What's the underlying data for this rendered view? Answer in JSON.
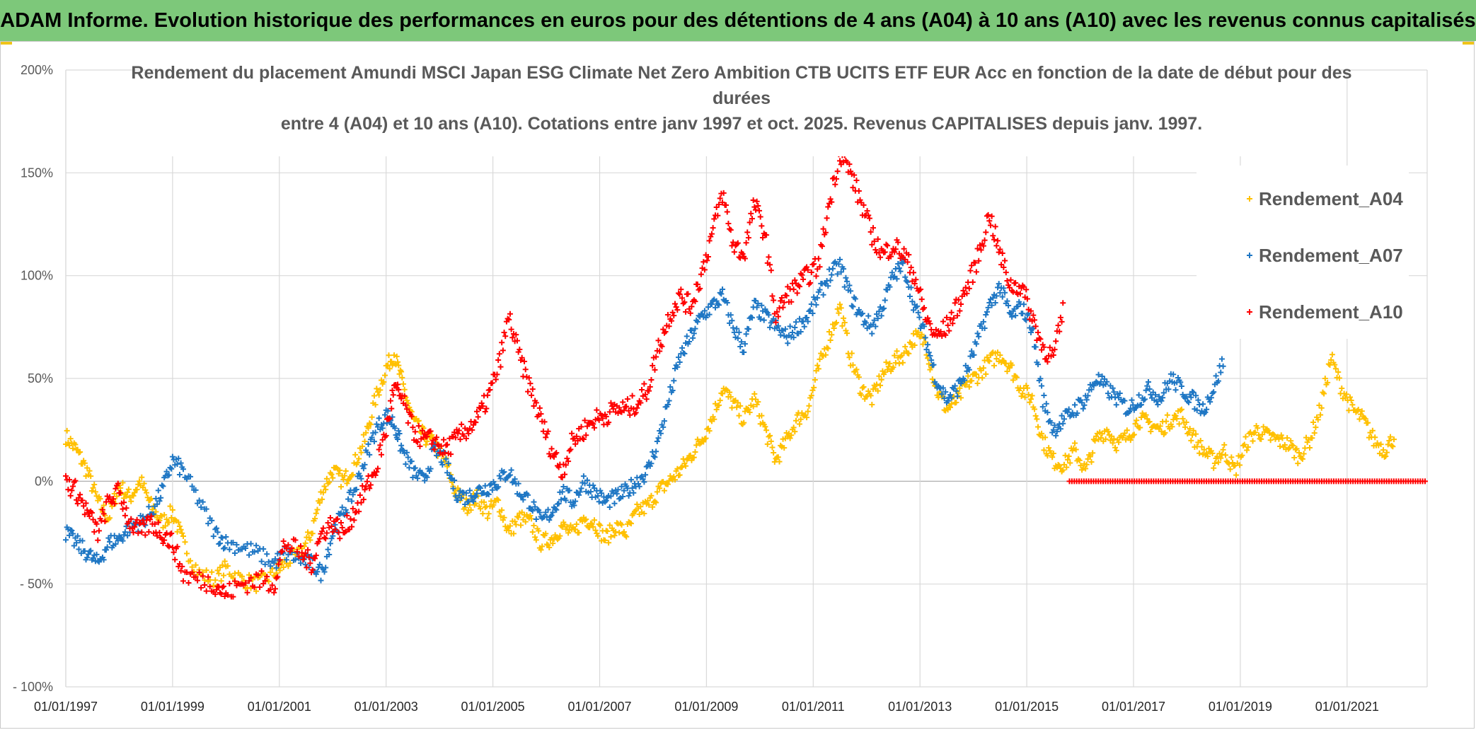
{
  "banner": {
    "text": "ADAM Informe. Evolution historique des performances en euros pour des détentions de 4 ans (A04) à 10 ans (A10) avec les revenus connus capitalisés"
  },
  "chart_data": {
    "type": "scatter",
    "title_lines": [
      "Rendement du placement Amundi MSCI Japan ESG Climate Net Zero Ambition CTB UCITS ETF EUR Acc en fonction de la date de début pour des",
      "durées",
      "entre 4 (A04) et 10 ans (A10). Cotations entre janv 1997 et oct. 2025. Revenus CAPITALISES depuis janv. 1997."
    ],
    "xlabel": "",
    "ylabel": "",
    "x_unit": "year",
    "xlim": [
      1997.0,
      2022.5
    ],
    "ylim": [
      -100,
      200
    ],
    "y_ticks": [
      -100,
      -50,
      0,
      50,
      100,
      150,
      200
    ],
    "y_tick_labels": [
      "- 100%",
      "- 50%",
      "0%",
      "50%",
      "100%",
      "150%",
      "200%"
    ],
    "x_tick_labels": [
      "01/01/1997",
      "01/01/1999",
      "01/01/2001",
      "01/01/2003",
      "01/01/2005",
      "01/01/2007",
      "01/01/2009",
      "01/01/2011",
      "01/01/2013",
      "01/01/2015",
      "01/01/2017",
      "01/01/2019",
      "01/01/2021"
    ],
    "x_tick_years": [
      1997,
      1999,
      2001,
      2003,
      2005,
      2007,
      2009,
      2011,
      2013,
      2015,
      2017,
      2019,
      2021
    ],
    "grid": true,
    "legend_position": "right",
    "marker": "+",
    "series": [
      {
        "name": "Rendement_A04",
        "color": "#ffc000",
        "x": [
          1997.0,
          1997.2,
          1997.4,
          1997.6,
          1997.8,
          1998.0,
          1998.2,
          1998.4,
          1998.6,
          1998.8,
          1999.0,
          1999.2,
          1999.5,
          1999.8,
          2000.0,
          2000.3,
          2000.6,
          2000.9,
          2001.1,
          2001.4,
          2001.6,
          2001.8,
          2002.0,
          2002.2,
          2002.4,
          2002.6,
          2002.8,
          2003.0,
          2003.15,
          2003.3,
          2003.5,
          2003.7,
          2003.9,
          2004.1,
          2004.3,
          2004.5,
          2004.7,
          2004.9,
          2005.1,
          2005.3,
          2005.5,
          2005.7,
          2005.9,
          2006.1,
          2006.3,
          2006.5,
          2006.7,
          2006.9,
          2007.1,
          2007.3,
          2007.5,
          2007.7,
          2007.9,
          2008.1,
          2008.3,
          2008.5,
          2008.7,
          2008.9,
          2009.1,
          2009.3,
          2009.5,
          2009.7,
          2009.9,
          2010.1,
          2010.3,
          2010.5,
          2010.7,
          2010.9,
          2011.1,
          2011.3,
          2011.5,
          2011.7,
          2011.9,
          2012.1,
          2012.3,
          2012.5,
          2012.7,
          2012.9,
          2013.1,
          2013.3,
          2013.5,
          2013.7,
          2013.9,
          2014.1,
          2014.3,
          2014.5,
          2014.7,
          2014.9,
          2015.1,
          2015.3,
          2015.5,
          2015.7,
          2015.9,
          2016.1,
          2016.3,
          2016.5,
          2016.7,
          2016.9,
          2017.1,
          2017.3,
          2017.5,
          2017.7,
          2017.9,
          2018.1,
          2018.3,
          2018.5,
          2018.7,
          2018.9,
          2019.1,
          2019.3,
          2019.5,
          2019.7,
          2019.9,
          2020.1,
          2020.3,
          2020.5,
          2020.7,
          2020.9,
          2021.1,
          2021.3,
          2021.5,
          2021.7,
          2021.9
        ],
        "y": [
          22,
          15,
          5,
          -10,
          -18,
          -2,
          -8,
          0,
          -12,
          -20,
          -15,
          -30,
          -45,
          -48,
          -42,
          -48,
          -50,
          -45,
          -40,
          -35,
          -25,
          -5,
          5,
          0,
          8,
          20,
          40,
          55,
          62,
          48,
          30,
          22,
          18,
          10,
          -5,
          -12,
          -8,
          -15,
          -10,
          -25,
          -18,
          -20,
          -30,
          -28,
          -22,
          -26,
          -18,
          -20,
          -28,
          -22,
          -25,
          -15,
          -12,
          -5,
          0,
          5,
          12,
          20,
          30,
          45,
          38,
          30,
          40,
          25,
          10,
          20,
          30,
          35,
          55,
          70,
          85,
          60,
          45,
          40,
          52,
          58,
          62,
          70,
          68,
          45,
          35,
          40,
          48,
          52,
          58,
          62,
          55,
          45,
          40,
          20,
          10,
          8,
          15,
          5,
          20,
          25,
          18,
          22,
          30,
          28,
          25,
          30,
          32,
          22,
          15,
          10,
          15,
          5,
          18,
          25,
          22,
          20,
          18,
          12,
          20,
          35,
          60,
          45,
          35,
          30,
          20,
          15,
          22
        ],
        "noise": 4
      },
      {
        "name": "Rendement_A07",
        "color": "#1f77c4",
        "x": [
          1997.0,
          1997.2,
          1997.4,
          1997.6,
          1997.8,
          1998.0,
          1998.2,
          1998.4,
          1998.6,
          1998.8,
          1999.0,
          1999.2,
          1999.5,
          1999.8,
          2000.0,
          2000.3,
          2000.6,
          2000.9,
          2001.1,
          2001.4,
          2001.6,
          2001.8,
          2002.0,
          2002.2,
          2002.4,
          2002.6,
          2002.8,
          2003.0,
          2003.15,
          2003.3,
          2003.5,
          2003.7,
          2003.9,
          2004.1,
          2004.3,
          2004.5,
          2004.7,
          2004.9,
          2005.1,
          2005.3,
          2005.5,
          2005.7,
          2005.9,
          2006.1,
          2006.3,
          2006.5,
          2006.7,
          2006.9,
          2007.1,
          2007.3,
          2007.5,
          2007.7,
          2007.9,
          2008.1,
          2008.3,
          2008.5,
          2008.7,
          2008.9,
          2009.1,
          2009.3,
          2009.5,
          2009.7,
          2009.9,
          2010.1,
          2010.3,
          2010.5,
          2010.7,
          2010.9,
          2011.1,
          2011.3,
          2011.5,
          2011.7,
          2011.9,
          2012.1,
          2012.3,
          2012.5,
          2012.7,
          2012.9,
          2013.1,
          2013.3,
          2013.5,
          2013.7,
          2013.9,
          2014.1,
          2014.3,
          2014.5,
          2014.7,
          2014.9,
          2015.1,
          2015.3,
          2015.5,
          2015.7,
          2015.9,
          2016.1,
          2016.3,
          2016.5,
          2016.7,
          2016.9,
          2017.1,
          2017.3,
          2017.5,
          2017.7,
          2017.9,
          2018.1,
          2018.3,
          2018.5,
          2018.7
        ],
        "y": [
          -25,
          -30,
          -35,
          -40,
          -30,
          -28,
          -22,
          -20,
          -15,
          -5,
          10,
          5,
          -10,
          -25,
          -30,
          -32,
          -35,
          -40,
          -35,
          -38,
          -40,
          -45,
          -25,
          -15,
          -5,
          10,
          25,
          32,
          28,
          15,
          5,
          0,
          15,
          10,
          -5,
          -8,
          -5,
          -3,
          0,
          5,
          -5,
          -10,
          -20,
          -15,
          -5,
          -10,
          0,
          -5,
          -10,
          -8,
          -5,
          0,
          5,
          20,
          40,
          60,
          70,
          80,
          85,
          90,
          75,
          65,
          85,
          80,
          75,
          70,
          75,
          80,
          90,
          100,
          105,
          90,
          80,
          75,
          85,
          100,
          105,
          85,
          70,
          50,
          40,
          45,
          55,
          70,
          85,
          95,
          80,
          85,
          75,
          40,
          25,
          30,
          35,
          40,
          50,
          45,
          40,
          35,
          40,
          45,
          40,
          50,
          45,
          40,
          35,
          45,
          60
        ],
        "noise": 4
      },
      {
        "name": "Rendement_A10",
        "color": "#ff0000",
        "x": [
          1997.0,
          1997.2,
          1997.4,
          1997.6,
          1997.8,
          1998.0,
          1998.2,
          1998.4,
          1998.6,
          1998.8,
          1999.0,
          1999.2,
          1999.5,
          1999.8,
          2000.0,
          2000.3,
          2000.6,
          2000.9,
          2001.1,
          2001.4,
          2001.6,
          2001.8,
          2002.0,
          2002.2,
          2002.4,
          2002.6,
          2002.8,
          2003.0,
          2003.15,
          2003.3,
          2003.5,
          2003.7,
          2003.9,
          2004.1,
          2004.3,
          2004.5,
          2004.7,
          2004.9,
          2005.1,
          2005.3,
          2005.5,
          2005.7,
          2005.9,
          2006.1,
          2006.3,
          2006.5,
          2006.7,
          2006.9,
          2007.1,
          2007.3,
          2007.5,
          2007.7,
          2007.9,
          2008.1,
          2008.3,
          2008.5,
          2008.7,
          2008.9,
          2009.1,
          2009.3,
          2009.5,
          2009.7,
          2009.9,
          2010.1,
          2010.3,
          2010.5,
          2010.7,
          2010.9,
          2011.1,
          2011.3,
          2011.5,
          2011.7,
          2011.9,
          2012.1,
          2012.3,
          2012.5,
          2012.7,
          2012.9,
          2013.1,
          2013.3,
          2013.5,
          2013.7,
          2013.9,
          2014.1,
          2014.3,
          2014.5,
          2014.7,
          2014.9,
          2015.1,
          2015.3,
          2015.5,
          2015.7
        ],
        "y": [
          0,
          -5,
          -15,
          -25,
          -10,
          -5,
          -20,
          -25,
          -20,
          -25,
          -30,
          -45,
          -48,
          -50,
          -55,
          -50,
          -48,
          -50,
          -30,
          -35,
          -40,
          -25,
          -20,
          -25,
          -15,
          -5,
          5,
          25,
          45,
          40,
          25,
          20,
          20,
          15,
          20,
          25,
          30,
          40,
          55,
          80,
          60,
          45,
          30,
          15,
          5,
          20,
          25,
          30,
          32,
          35,
          35,
          38,
          45,
          65,
          80,
          90,
          85,
          100,
          120,
          140,
          115,
          110,
          135,
          120,
          80,
          90,
          95,
          100,
          105,
          135,
          160,
          150,
          135,
          120,
          110,
          115,
          110,
          100,
          80,
          70,
          75,
          85,
          95,
          110,
          130,
          110,
          95,
          95,
          80,
          65,
          60,
          85
        ],
        "noise": 5,
        "flat_x": [
          2015.8,
          2022.5
        ],
        "flat_y": 0
      }
    ]
  }
}
